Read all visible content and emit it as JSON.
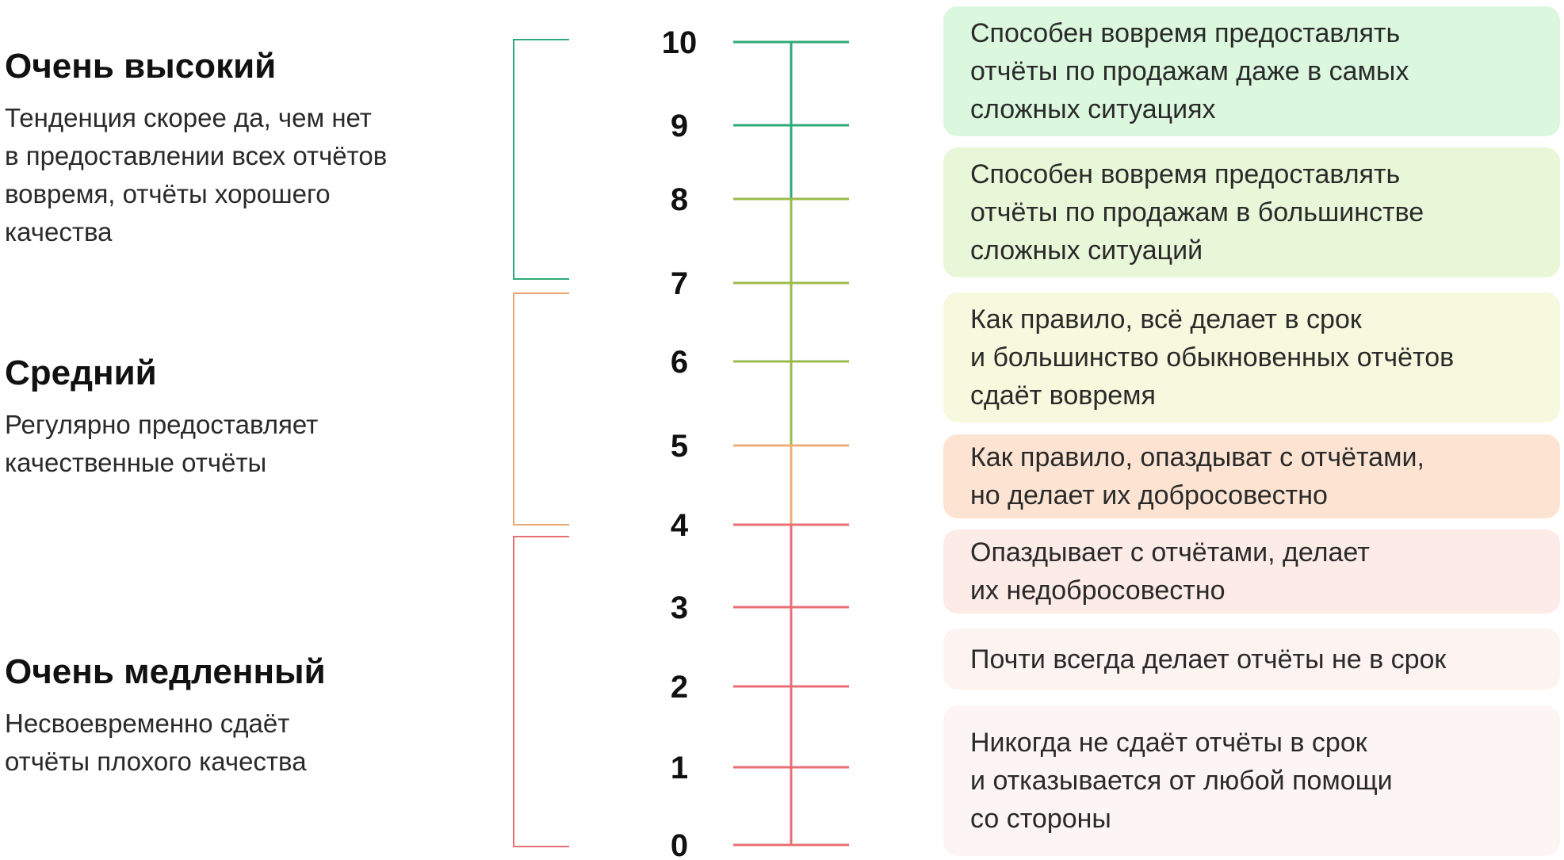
{
  "categories": [
    {
      "title": "Очень высокий",
      "description": "Тенденция скорее да, чем нет\nв предоставлении всех отчётов\nвовремя, отчёты хорошего\nкачества",
      "color": "#2eaa7a",
      "range": [
        7,
        10
      ]
    },
    {
      "title": "Средний",
      "description": "Регулярно предоставляет\nкачественные отчёты",
      "color": "#eba572",
      "range": [
        4,
        7
      ]
    },
    {
      "title": "Очень медленный",
      "description": "Несвоевременно сдаёт\nотчёты плохого качества",
      "color": "#e86f75",
      "range": [
        0,
        4
      ]
    }
  ],
  "scale": {
    "ticks": [
      "10",
      "9",
      "8",
      "7",
      "6",
      "5",
      "4",
      "3",
      "2",
      "1",
      "0"
    ],
    "tick_colors": [
      "#2eaa7a",
      "#2eaa7a",
      "#9bbb4c",
      "#9bbb4c",
      "#9bbb4c",
      "#edb078",
      "#e86f75",
      "#e86f75",
      "#e86f75",
      "#e86f75",
      "#e86f75"
    ]
  },
  "levels": [
    {
      "text": "Способен вовремя предоставлять\nотчёты по продажам даже в самых\nсложных ситуациях",
      "bg": "#dbf8de"
    },
    {
      "text": "Способен вовремя предоставлять\nотчёты по продажам в большинстве\nсложных ситуаций",
      "bg": "#e9f7d9"
    },
    {
      "text": "Как правило, всё делает в срок\nи большинство обыкновенных отчётов\nсдаёт вовремя",
      "bg": "#f6f9dd"
    },
    {
      "text": "Как правило, опаздыват с отчётами,\nно делает их добросовестно",
      "bg": "#fde3d2"
    },
    {
      "text": "Опаздывает с отчётами, делает\nих недобросовестно",
      "bg": "#fcebe6"
    },
    {
      "text": "Почти всегда делает отчёты не в срок",
      "bg": "#fdf3f1"
    },
    {
      "text": "Никогда не сдаёт отчёты в срок\nи отказывается от любой помощи\nсо стороны",
      "bg": "#fdf5f4"
    }
  ]
}
